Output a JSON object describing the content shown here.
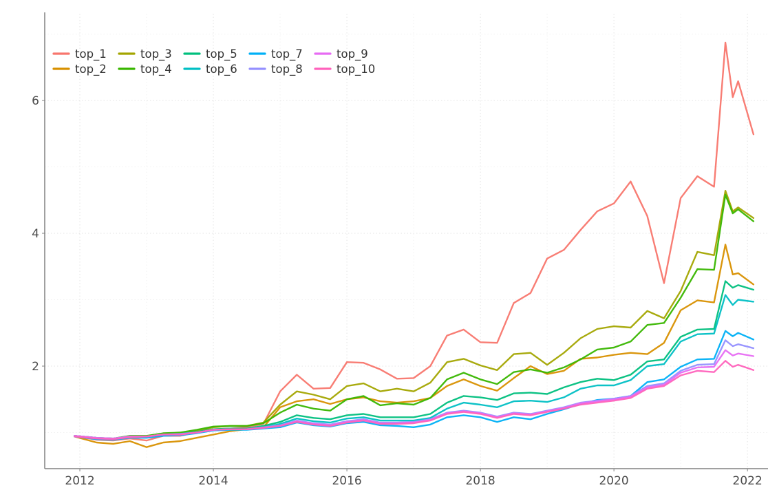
{
  "page": {
    "title": "",
    "background": "#ffffff"
  },
  "axes": {
    "x_tick_labels": [
      "2012",
      "2014",
      "2016",
      "2018",
      "2020",
      "2022"
    ],
    "y_tick_labels": [
      "2",
      "4",
      "6"
    ],
    "axis_color": "#808080",
    "tick_label_color": "#4d4d4d",
    "grid_major_color": "#e3e3e3",
    "grid_minor_color": "#f1f1f1"
  },
  "chart_data": {
    "type": "line",
    "title": "",
    "xlabel": "",
    "ylabel": "",
    "grid": true,
    "legend_position": "top-left-inside",
    "legend_rows": 2,
    "legend_cols": 5,
    "xlim": [
      2011.474,
      2022.72
    ],
    "ylim": [
      0.456,
      7.264
    ],
    "x_ticks_major": [
      2012,
      2014,
      2016,
      2018,
      2020,
      2022
    ],
    "x_ticks_minor": [
      2013,
      2015,
      2017,
      2019,
      2021
    ],
    "y_ticks_major": [
      2,
      4,
      6
    ],
    "y_ticks_minor": [
      1,
      3,
      5,
      7
    ],
    "x": [
      2011.92,
      2012.25,
      2012.5,
      2012.75,
      2013.0,
      2013.25,
      2013.5,
      2013.75,
      2014.0,
      2014.25,
      2014.5,
      2014.75,
      2015.0,
      2015.25,
      2015.5,
      2015.75,
      2016.0,
      2016.25,
      2016.5,
      2016.75,
      2017.0,
      2017.25,
      2017.5,
      2017.75,
      2018.0,
      2018.25,
      2018.5,
      2018.75,
      2019.0,
      2019.25,
      2019.5,
      2019.75,
      2020.0,
      2020.25,
      2020.5,
      2020.75,
      2021.0,
      2021.25,
      2021.5,
      2021.67,
      2021.78,
      2021.86,
      2022.09
    ],
    "series": [
      {
        "name": "top_1",
        "color": "#F8766D",
        "values": [
          0.95,
          0.89,
          0.88,
          0.91,
          0.88,
          0.95,
          0.95,
          1.0,
          1.05,
          1.06,
          1.08,
          1.13,
          1.62,
          1.87,
          1.66,
          1.67,
          2.06,
          2.05,
          1.95,
          1.81,
          1.82,
          2.0,
          2.46,
          2.55,
          2.36,
          2.35,
          2.95,
          3.1,
          3.62,
          3.75,
          4.05,
          4.33,
          4.45,
          4.78,
          4.26,
          3.25,
          4.53,
          4.86,
          4.7,
          6.87,
          6.05,
          6.29,
          5.49
        ]
      },
      {
        "name": "top_2",
        "color": "#D89000",
        "values": [
          0.94,
          0.85,
          0.83,
          0.87,
          0.78,
          0.85,
          0.87,
          0.92,
          0.97,
          1.02,
          1.05,
          1.08,
          1.38,
          1.47,
          1.5,
          1.43,
          1.5,
          1.53,
          1.47,
          1.45,
          1.47,
          1.52,
          1.7,
          1.8,
          1.7,
          1.63,
          1.82,
          2.0,
          1.88,
          1.93,
          2.11,
          2.13,
          2.17,
          2.2,
          2.18,
          2.35,
          2.84,
          2.99,
          2.96,
          3.83,
          3.38,
          3.4,
          3.23
        ]
      },
      {
        "name": "top_3",
        "color": "#A3A500",
        "values": [
          0.95,
          0.92,
          0.9,
          0.94,
          0.93,
          0.97,
          0.98,
          1.02,
          1.08,
          1.1,
          1.1,
          1.15,
          1.42,
          1.62,
          1.57,
          1.5,
          1.7,
          1.74,
          1.62,
          1.66,
          1.62,
          1.75,
          2.06,
          2.11,
          2.01,
          1.94,
          2.18,
          2.2,
          2.02,
          2.2,
          2.42,
          2.56,
          2.6,
          2.58,
          2.83,
          2.72,
          3.13,
          3.72,
          3.67,
          4.64,
          4.33,
          4.39,
          4.23
        ]
      },
      {
        "name": "top_4",
        "color": "#39B600",
        "values": [
          0.95,
          0.92,
          0.91,
          0.95,
          0.95,
          0.99,
          1.0,
          1.04,
          1.09,
          1.1,
          1.1,
          1.14,
          1.3,
          1.42,
          1.36,
          1.33,
          1.5,
          1.55,
          1.41,
          1.44,
          1.42,
          1.52,
          1.8,
          1.9,
          1.8,
          1.73,
          1.91,
          1.95,
          1.9,
          1.98,
          2.1,
          2.25,
          2.28,
          2.37,
          2.62,
          2.65,
          3.03,
          3.46,
          3.45,
          4.58,
          4.3,
          4.36,
          4.18
        ]
      },
      {
        "name": "top_5",
        "color": "#00BF7D",
        "values": [
          0.95,
          0.92,
          0.91,
          0.94,
          0.94,
          0.97,
          0.98,
          1.01,
          1.05,
          1.06,
          1.06,
          1.1,
          1.16,
          1.26,
          1.22,
          1.2,
          1.26,
          1.28,
          1.23,
          1.23,
          1.23,
          1.28,
          1.45,
          1.55,
          1.53,
          1.49,
          1.59,
          1.6,
          1.58,
          1.68,
          1.76,
          1.81,
          1.79,
          1.87,
          2.07,
          2.1,
          2.44,
          2.55,
          2.56,
          3.28,
          3.18,
          3.22,
          3.15
        ]
      },
      {
        "name": "top_6",
        "color": "#00BFC4",
        "values": [
          0.94,
          0.91,
          0.9,
          0.93,
          0.93,
          0.96,
          0.97,
          1.0,
          1.04,
          1.05,
          1.05,
          1.08,
          1.13,
          1.21,
          1.17,
          1.15,
          1.21,
          1.23,
          1.18,
          1.18,
          1.18,
          1.22,
          1.36,
          1.45,
          1.42,
          1.38,
          1.47,
          1.48,
          1.46,
          1.53,
          1.66,
          1.71,
          1.71,
          1.79,
          2.0,
          2.03,
          2.37,
          2.48,
          2.49,
          3.07,
          2.92,
          3.0,
          2.97
        ]
      },
      {
        "name": "top_7",
        "color": "#00B0F6",
        "values": [
          0.94,
          0.9,
          0.89,
          0.92,
          0.92,
          0.95,
          0.96,
          0.99,
          1.03,
          1.04,
          1.04,
          1.06,
          1.08,
          1.15,
          1.11,
          1.09,
          1.14,
          1.16,
          1.11,
          1.1,
          1.08,
          1.12,
          1.23,
          1.26,
          1.23,
          1.16,
          1.23,
          1.2,
          1.28,
          1.35,
          1.43,
          1.49,
          1.51,
          1.55,
          1.76,
          1.8,
          1.99,
          2.1,
          2.11,
          2.53,
          2.45,
          2.5,
          2.4
        ]
      },
      {
        "name": "top_8",
        "color": "#9590FF",
        "values": [
          0.95,
          0.92,
          0.91,
          0.94,
          0.94,
          0.97,
          0.98,
          1.0,
          1.04,
          1.05,
          1.05,
          1.08,
          1.11,
          1.18,
          1.14,
          1.12,
          1.17,
          1.2,
          1.15,
          1.15,
          1.16,
          1.2,
          1.3,
          1.33,
          1.3,
          1.24,
          1.3,
          1.28,
          1.33,
          1.38,
          1.45,
          1.48,
          1.51,
          1.55,
          1.7,
          1.74,
          1.93,
          2.02,
          2.03,
          2.39,
          2.3,
          2.33,
          2.27
        ]
      },
      {
        "name": "top_9",
        "color": "#E76BF3",
        "values": [
          0.95,
          0.92,
          0.91,
          0.94,
          0.94,
          0.97,
          0.97,
          1.0,
          1.04,
          1.05,
          1.05,
          1.07,
          1.1,
          1.17,
          1.13,
          1.11,
          1.16,
          1.19,
          1.14,
          1.14,
          1.15,
          1.19,
          1.29,
          1.32,
          1.29,
          1.23,
          1.29,
          1.27,
          1.32,
          1.37,
          1.44,
          1.47,
          1.5,
          1.54,
          1.68,
          1.72,
          1.9,
          1.98,
          1.99,
          2.24,
          2.16,
          2.19,
          2.15
        ]
      },
      {
        "name": "top_10",
        "color": "#FF62BC",
        "values": [
          0.94,
          0.91,
          0.9,
          0.93,
          0.94,
          0.97,
          0.97,
          1.0,
          1.04,
          1.05,
          1.05,
          1.07,
          1.1,
          1.16,
          1.12,
          1.1,
          1.15,
          1.18,
          1.13,
          1.13,
          1.14,
          1.18,
          1.28,
          1.31,
          1.28,
          1.22,
          1.28,
          1.26,
          1.31,
          1.36,
          1.42,
          1.45,
          1.48,
          1.52,
          1.66,
          1.7,
          1.86,
          1.93,
          1.91,
          2.08,
          1.99,
          2.02,
          1.94
        ]
      }
    ]
  }
}
